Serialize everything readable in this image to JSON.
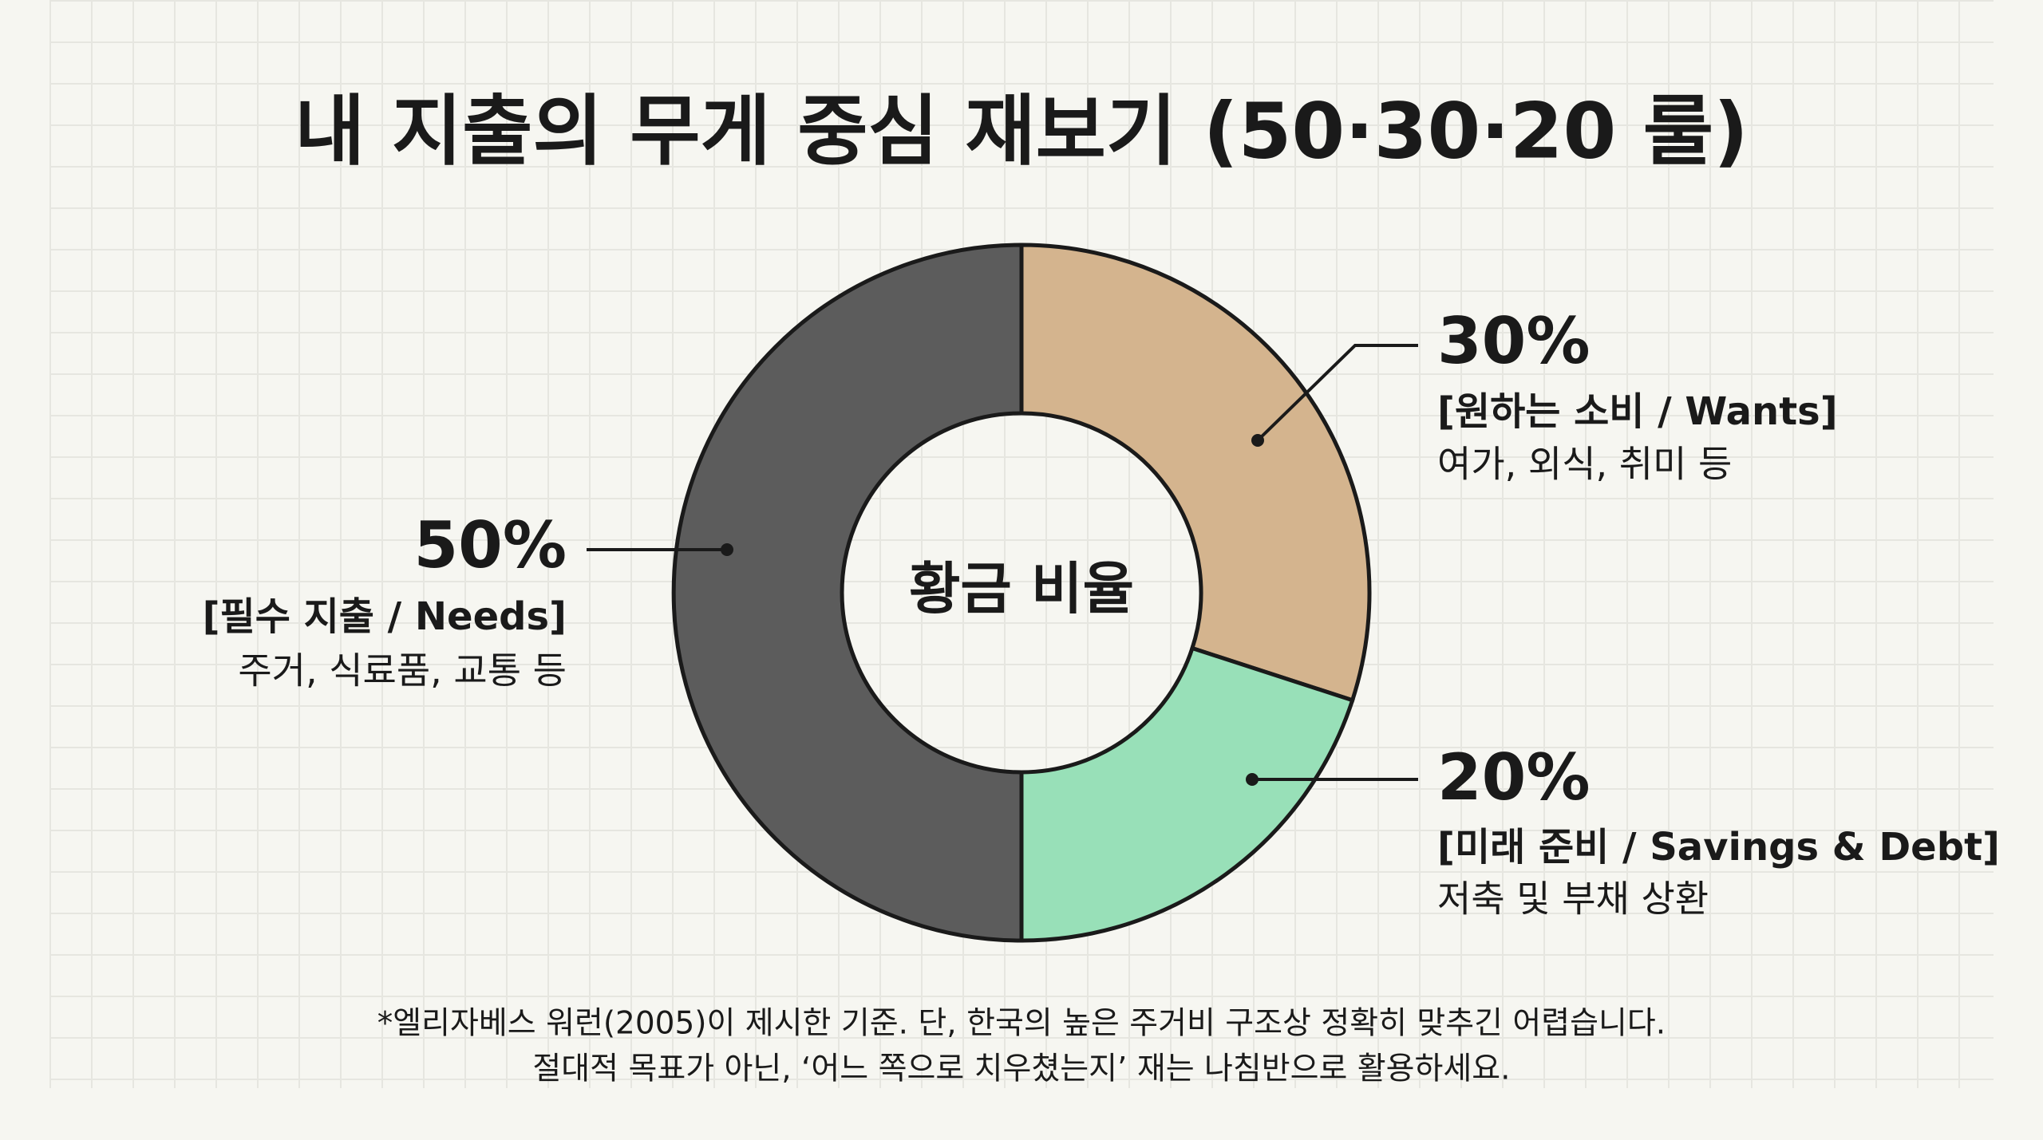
{
  "chart_data": {
    "type": "donut",
    "title": "내 지출의 무게 중심 재보기 (50·30·20 룰)",
    "center_label": "황금 비율",
    "categories": [
      "[원하는 소비 / Wants]",
      "[미래 준비 / Savings & Debt]",
      "[필수 지출 / Needs]"
    ],
    "descriptions": [
      "여가, 외식, 취미 등",
      "저축 및 부채 상환",
      "주거, 식료품, 교통 등"
    ],
    "values": [
      30,
      20,
      50
    ],
    "value_labels": [
      "30%",
      "20%",
      "50%"
    ],
    "colors": [
      "#d4b48e",
      "#98e0b8",
      "#5c5c5c"
    ],
    "footnote": [
      "*엘리자베스 워런(2005)이 제시한 기준. 단, 한국의 높은 주거비 구조상 정확히 맞추긴 어렵습니다.",
      "절대적 목표가 아닌, ‘어느 쪽으로 치우쳤는지’ 재는 나침반으로 활용하세요."
    ]
  }
}
